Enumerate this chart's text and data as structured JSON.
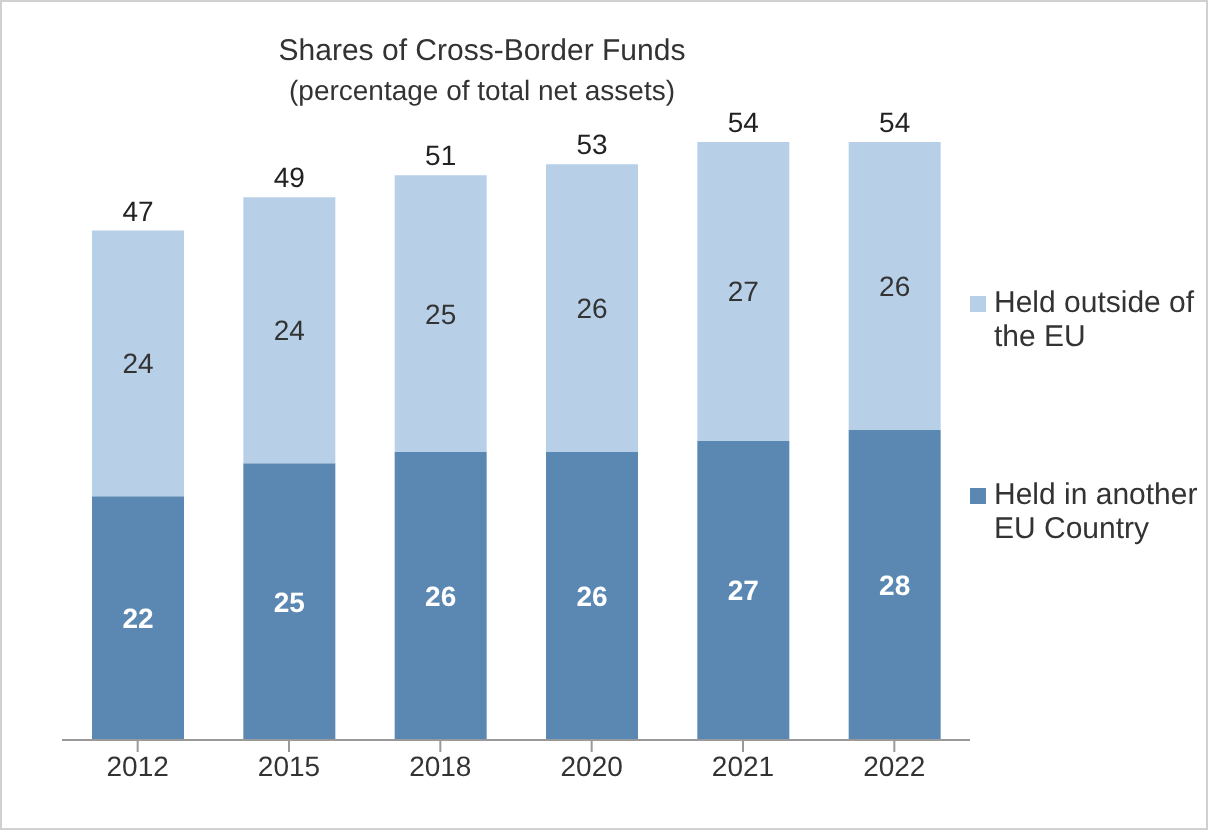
{
  "chart_data": {
    "type": "bar",
    "title": "Shares of Cross-Border Funds",
    "subtitle": "(percentage of total net assets)",
    "categories": [
      "2012",
      "2015",
      "2018",
      "2020",
      "2021",
      "2022"
    ],
    "stacked": true,
    "data_labels": true,
    "legend": "right",
    "totals": [
      "47",
      "49",
      "51",
      "53",
      "54",
      "54"
    ],
    "series": [
      {
        "name": "Held in another EU Country",
        "color": "#5b88b2",
        "values": [
          22,
          25,
          26,
          26,
          27,
          28
        ]
      },
      {
        "name": "Held outside of the EU",
        "color": "#b7cfe7",
        "values": [
          24,
          24,
          25,
          26,
          27,
          26
        ]
      }
    ]
  }
}
